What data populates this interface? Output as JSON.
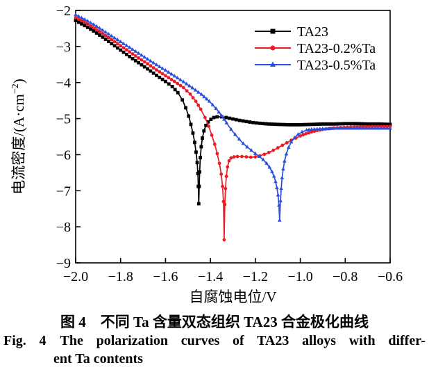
{
  "figure": {
    "caption_zh": "图 4　不同 Ta 含量双态组织 TA23 合金极化曲线",
    "caption_en": {
      "line1": "Fig. 4 The polarization curves of TA23 alloys with differ-",
      "line2": "ent Ta contents"
    }
  },
  "chart_data": {
    "type": "line",
    "title": "",
    "xlabel": "自腐蚀电位/V",
    "ylabel": "电流密度/(A·cm⁻²)",
    "xlim": [
      -2.0,
      -0.6
    ],
    "ylim": [
      -9,
      -2
    ],
    "xticks": [
      -2.0,
      -1.8,
      -1.6,
      -1.4,
      -1.2,
      -1.0,
      -0.8,
      -0.6
    ],
    "xtick_labels": [
      "−2.0",
      "−1.8",
      "−1.6",
      "−1.4",
      "−1.2",
      "−1.0",
      "−0.8",
      "−0.6"
    ],
    "yticks": [
      -9,
      -8,
      -7,
      -6,
      -5,
      -4,
      -3,
      -2
    ],
    "ytick_labels": [
      "−9",
      "−8",
      "−7",
      "−6",
      "−5",
      "−4",
      "−3",
      "−2"
    ],
    "grid": false,
    "legend_position": "top-right-inside",
    "series": [
      {
        "name": "TA23",
        "color": "#000000",
        "marker": "square",
        "corrosion_potential_V": -1.45,
        "dip_min_logJ": -7.36,
        "points": [
          [
            -2.0,
            -2.28
          ],
          [
            -1.96,
            -2.42
          ],
          [
            -1.92,
            -2.57
          ],
          [
            -1.88,
            -2.74
          ],
          [
            -1.84,
            -2.92
          ],
          [
            -1.8,
            -3.1
          ],
          [
            -1.76,
            -3.28
          ],
          [
            -1.72,
            -3.45
          ],
          [
            -1.68,
            -3.62
          ],
          [
            -1.64,
            -3.8
          ],
          [
            -1.6,
            -3.97
          ],
          [
            -1.57,
            -4.11
          ],
          [
            -1.545,
            -4.28
          ],
          [
            -1.525,
            -4.48
          ],
          [
            -1.51,
            -4.7
          ],
          [
            -1.497,
            -4.93
          ],
          [
            -1.487,
            -5.16
          ],
          [
            -1.478,
            -5.4
          ],
          [
            -1.47,
            -5.66
          ],
          [
            -1.464,
            -5.93
          ],
          [
            -1.459,
            -6.22
          ],
          [
            -1.456,
            -6.52
          ],
          [
            -1.454,
            -6.88
          ],
          [
            -1.452,
            -7.36
          ],
          [
            -1.45,
            -6.88
          ],
          [
            -1.448,
            -6.48
          ],
          [
            -1.445,
            -6.08
          ],
          [
            -1.441,
            -5.78
          ],
          [
            -1.436,
            -5.54
          ],
          [
            -1.429,
            -5.34
          ],
          [
            -1.42,
            -5.19
          ],
          [
            -1.41,
            -5.09
          ],
          [
            -1.398,
            -5.02
          ],
          [
            -1.385,
            -4.97
          ],
          [
            -1.37,
            -4.95
          ],
          [
            -1.35,
            -4.95
          ],
          [
            -1.33,
            -4.97
          ],
          [
            -1.3,
            -5.01
          ],
          [
            -1.27,
            -5.05
          ],
          [
            -1.24,
            -5.08
          ],
          [
            -1.21,
            -5.11
          ],
          [
            -1.18,
            -5.13
          ],
          [
            -1.14,
            -5.15
          ],
          [
            -1.1,
            -5.16
          ],
          [
            -1.05,
            -5.17
          ],
          [
            -1.0,
            -5.17
          ],
          [
            -0.95,
            -5.16
          ],
          [
            -0.9,
            -5.15
          ],
          [
            -0.85,
            -5.15
          ],
          [
            -0.8,
            -5.14
          ],
          [
            -0.75,
            -5.14
          ],
          [
            -0.7,
            -5.15
          ],
          [
            -0.65,
            -5.15
          ],
          [
            -0.6,
            -5.16
          ]
        ]
      },
      {
        "name": "TA23-0.2%Ta",
        "color": "#ed1c24",
        "marker": "circle",
        "corrosion_potential_V": -1.34,
        "dip_min_logJ": -8.36,
        "points": [
          [
            -2.0,
            -2.2
          ],
          [
            -1.96,
            -2.33
          ],
          [
            -1.92,
            -2.48
          ],
          [
            -1.88,
            -2.64
          ],
          [
            -1.84,
            -2.81
          ],
          [
            -1.8,
            -2.98
          ],
          [
            -1.76,
            -3.15
          ],
          [
            -1.72,
            -3.32
          ],
          [
            -1.68,
            -3.48
          ],
          [
            -1.64,
            -3.65
          ],
          [
            -1.6,
            -3.81
          ],
          [
            -1.56,
            -3.97
          ],
          [
            -1.52,
            -4.14
          ],
          [
            -1.49,
            -4.32
          ],
          [
            -1.465,
            -4.52
          ],
          [
            -1.443,
            -4.74
          ],
          [
            -1.424,
            -4.97
          ],
          [
            -1.408,
            -5.21
          ],
          [
            -1.394,
            -5.46
          ],
          [
            -1.381,
            -5.71
          ],
          [
            -1.37,
            -5.97
          ],
          [
            -1.36,
            -6.24
          ],
          [
            -1.352,
            -6.54
          ],
          [
            -1.346,
            -6.88
          ],
          [
            -1.342,
            -7.3
          ],
          [
            -1.339,
            -8.36
          ],
          [
            -1.336,
            -7.38
          ],
          [
            -1.333,
            -6.94
          ],
          [
            -1.329,
            -6.6
          ],
          [
            -1.324,
            -6.34
          ],
          [
            -1.317,
            -6.17
          ],
          [
            -1.308,
            -6.09
          ],
          [
            -1.295,
            -6.06
          ],
          [
            -1.28,
            -6.05
          ],
          [
            -1.26,
            -6.05
          ],
          [
            -1.24,
            -6.06
          ],
          [
            -1.22,
            -6.07
          ],
          [
            -1.2,
            -6.06
          ],
          [
            -1.18,
            -6.03
          ],
          [
            -1.16,
            -5.99
          ],
          [
            -1.14,
            -5.94
          ],
          [
            -1.12,
            -5.88
          ],
          [
            -1.1,
            -5.81
          ],
          [
            -1.08,
            -5.74
          ],
          [
            -1.06,
            -5.67
          ],
          [
            -1.04,
            -5.6
          ],
          [
            -1.02,
            -5.54
          ],
          [
            -1.0,
            -5.48
          ],
          [
            -0.975,
            -5.42
          ],
          [
            -0.95,
            -5.37
          ],
          [
            -0.925,
            -5.33
          ],
          [
            -0.9,
            -5.3
          ],
          [
            -0.875,
            -5.28
          ],
          [
            -0.85,
            -5.26
          ],
          [
            -0.82,
            -5.25
          ],
          [
            -0.79,
            -5.24
          ],
          [
            -0.76,
            -5.23
          ],
          [
            -0.72,
            -5.23
          ],
          [
            -0.68,
            -5.22
          ],
          [
            -0.64,
            -5.22
          ],
          [
            -0.6,
            -5.22
          ]
        ]
      },
      {
        "name": "TA23-0.5%Ta",
        "color": "#2b50e0",
        "marker": "triangle",
        "corrosion_potential_V": -1.09,
        "dip_min_logJ": -7.82,
        "points": [
          [
            -2.0,
            -2.12
          ],
          [
            -1.96,
            -2.25
          ],
          [
            -1.92,
            -2.39
          ],
          [
            -1.88,
            -2.55
          ],
          [
            -1.84,
            -2.71
          ],
          [
            -1.8,
            -2.87
          ],
          [
            -1.76,
            -3.03
          ],
          [
            -1.72,
            -3.19
          ],
          [
            -1.68,
            -3.35
          ],
          [
            -1.64,
            -3.51
          ],
          [
            -1.6,
            -3.66
          ],
          [
            -1.56,
            -3.82
          ],
          [
            -1.52,
            -3.98
          ],
          [
            -1.48,
            -4.15
          ],
          [
            -1.44,
            -4.33
          ],
          [
            -1.405,
            -4.52
          ],
          [
            -1.375,
            -4.72
          ],
          [
            -1.35,
            -4.92
          ],
          [
            -1.328,
            -5.12
          ],
          [
            -1.308,
            -5.3
          ],
          [
            -1.29,
            -5.44
          ],
          [
            -1.272,
            -5.57
          ],
          [
            -1.254,
            -5.69
          ],
          [
            -1.236,
            -5.79
          ],
          [
            -1.218,
            -5.88
          ],
          [
            -1.2,
            -5.97
          ],
          [
            -1.182,
            -6.05
          ],
          [
            -1.165,
            -6.14
          ],
          [
            -1.15,
            -6.24
          ],
          [
            -1.137,
            -6.35
          ],
          [
            -1.126,
            -6.47
          ],
          [
            -1.117,
            -6.6
          ],
          [
            -1.11,
            -6.75
          ],
          [
            -1.104,
            -6.92
          ],
          [
            -1.099,
            -7.12
          ],
          [
            -1.095,
            -7.4
          ],
          [
            -1.092,
            -7.82
          ],
          [
            -1.088,
            -7.28
          ],
          [
            -1.085,
            -6.94
          ],
          [
            -1.081,
            -6.64
          ],
          [
            -1.076,
            -6.4
          ],
          [
            -1.07,
            -6.18
          ],
          [
            -1.062,
            -5.98
          ],
          [
            -1.052,
            -5.8
          ],
          [
            -1.04,
            -5.65
          ],
          [
            -1.026,
            -5.53
          ],
          [
            -1.01,
            -5.44
          ],
          [
            -0.992,
            -5.37
          ],
          [
            -0.972,
            -5.32
          ],
          [
            -0.95,
            -5.3
          ],
          [
            -0.925,
            -5.29
          ],
          [
            -0.9,
            -5.28
          ],
          [
            -0.87,
            -5.28
          ],
          [
            -0.84,
            -5.27
          ],
          [
            -0.8,
            -5.27
          ],
          [
            -0.76,
            -5.27
          ],
          [
            -0.72,
            -5.27
          ],
          [
            -0.68,
            -5.27
          ],
          [
            -0.64,
            -5.27
          ],
          [
            -0.6,
            -5.27
          ]
        ]
      }
    ]
  }
}
